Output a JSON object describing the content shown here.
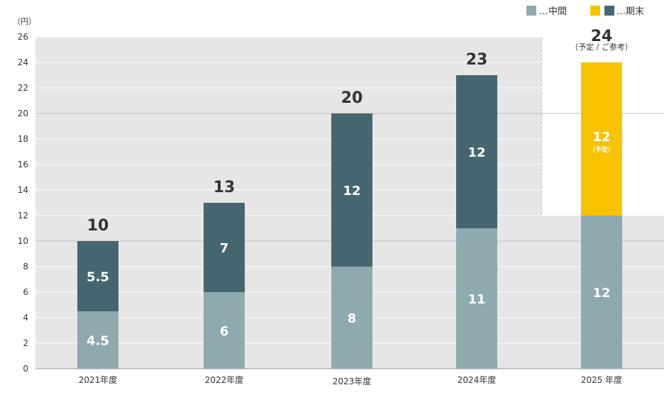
{
  "chart_data": {
    "type": "bar",
    "stacked": true,
    "unit_label": "（円）",
    "legend": {
      "placement": "top-right",
      "items": [
        {
          "key": "interim",
          "label": "…中間"
        },
        {
          "key": "final",
          "label": "…期末"
        }
      ]
    },
    "categories": [
      "2021年度",
      "2022年度",
      "2023年度",
      "2024年度",
      "2025 年度"
    ],
    "series": [
      {
        "key": "interim",
        "name": "中間",
        "values": [
          4.5,
          6,
          8,
          11,
          12
        ],
        "labels": [
          "4.5",
          "6",
          "8",
          "11",
          "12"
        ]
      },
      {
        "key": "final",
        "name": "期末",
        "values": [
          5.5,
          7,
          12,
          12,
          12
        ],
        "labels": [
          "5.5",
          "7",
          "12",
          "12",
          "12"
        ]
      }
    ],
    "totals": [
      "10",
      "13",
      "20",
      "23",
      "24"
    ],
    "forecast": {
      "category_index": 4,
      "total_note": "（予定 / ご参考）",
      "segment_note": "（予定）"
    },
    "ylim": [
      0,
      26
    ],
    "yticks": [
      0,
      2,
      4,
      6,
      8,
      10,
      12,
      14,
      16,
      18,
      20,
      22,
      24,
      26
    ],
    "grid": true,
    "xlabel": "",
    "ylabel": ""
  },
  "colors": {
    "interim": "#8fa9b1",
    "final": "#456670",
    "forecast": "#f7c300",
    "plot_bg": "#e6e6e6",
    "grid": "#ffffff",
    "text": "#333333",
    "total_text": "#333333",
    "bar_text": "#ffffff"
  }
}
